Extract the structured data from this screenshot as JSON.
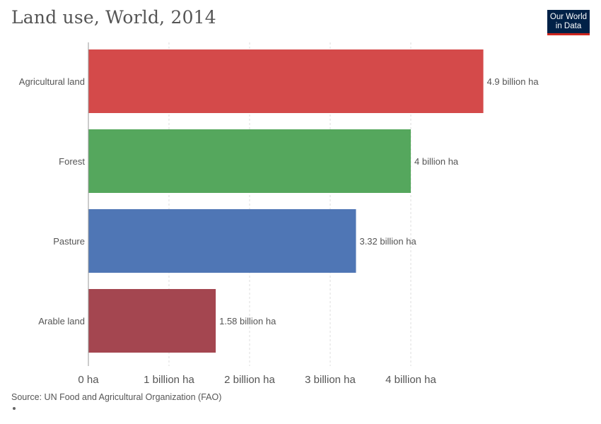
{
  "header": {
    "title": "Land use, World, 2014",
    "logo_line1": "Our World",
    "logo_line2": "in Data"
  },
  "footer": {
    "source": "Source: UN Food and Agricultural Organization (FAO)"
  },
  "chart_data": {
    "type": "bar",
    "orientation": "horizontal",
    "title": "Land use, World, 2014",
    "xlabel": "",
    "ylabel": "",
    "categories": [
      "Agricultural land",
      "Forest",
      "Pasture",
      "Arable land"
    ],
    "values": [
      4.9,
      4.0,
      3.32,
      1.58
    ],
    "value_labels": [
      "4.9 billion ha",
      "4 billion ha",
      "3.32 billion ha",
      "1.58 billion ha"
    ],
    "colors": [
      "#d44a4a",
      "#55a75d",
      "#4f76b5",
      "#a44650"
    ],
    "xlim": [
      0,
      4.9
    ],
    "xticks": [
      0,
      1,
      2,
      3,
      4
    ],
    "xtick_labels": [
      "0 ha",
      "1 billion ha",
      "2 billion ha",
      "3 billion ha",
      "4 billion ha"
    ],
    "grid": "vertical dashed",
    "unit": "billion ha"
  }
}
